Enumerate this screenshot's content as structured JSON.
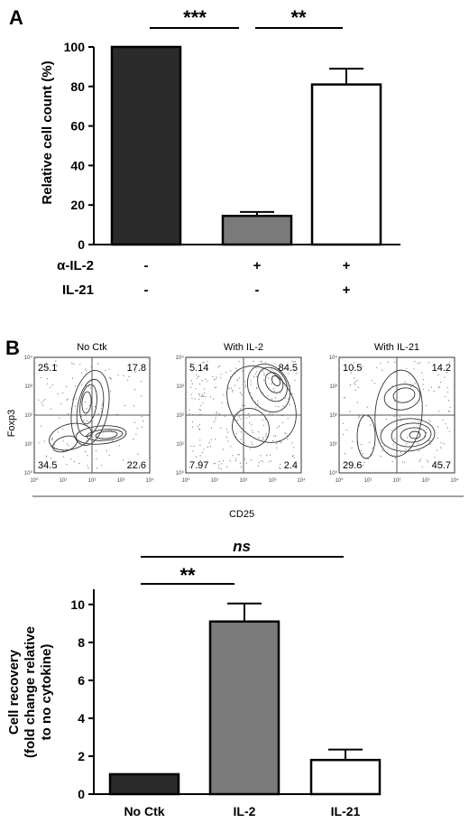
{
  "panel_a": {
    "label": "A",
    "treatment_rows": [
      {
        "name": "α-IL-2",
        "values": [
          "-",
          "+",
          "+"
        ]
      },
      {
        "name": "IL-21",
        "values": [
          "-",
          "-",
          "+"
        ]
      }
    ],
    "significance": [
      "***",
      "**"
    ]
  },
  "panel_b": {
    "label": "B",
    "flow": {
      "xlabel": "CD25",
      "ylabel": "Foxp3",
      "x_ticks": [
        "10⁰",
        "10¹",
        "10²",
        "10³",
        "10⁴"
      ],
      "y_ticks": [
        "10⁰",
        "10¹",
        "10²",
        "10³",
        "10⁴"
      ],
      "plots": [
        {
          "title": "No Ctk",
          "quadrants": {
            "ul": "25.1",
            "ur": "17.8",
            "ll": "34.5",
            "lr": "22.6"
          }
        },
        {
          "title": "With IL-2",
          "quadrants": {
            "ul": "5.14",
            "ur": "84.5",
            "ll": "7.97",
            "lr": "2.4"
          }
        },
        {
          "title": "With IL-21",
          "quadrants": {
            "ul": "10.5",
            "ur": "14.2",
            "ll": "29.6",
            "lr": "45.7"
          }
        }
      ]
    },
    "significance": [
      "ns",
      "**"
    ]
  },
  "colors": {
    "dark": "#2b2b2b",
    "gray": "#7a7a7a",
    "white": "#ffffff"
  },
  "chart_data": [
    {
      "type": "bar",
      "ylabel": "Relative cell count (%)",
      "ylim": [
        0,
        100
      ],
      "yticks": [
        0,
        20,
        40,
        60,
        80,
        100
      ],
      "categories": [
        "",
        "",
        ""
      ],
      "values": [
        100,
        14.5,
        81
      ],
      "errors": [
        0,
        2,
        8
      ],
      "bar_colors": [
        "#2b2b2b",
        "#7a7a7a",
        "#ffffff"
      ]
    },
    {
      "type": "bar",
      "ylabel": "Cell recovery (fold change relative to no cytokine)",
      "ylabel_lines": [
        "Cell recovery",
        "(fold change relative",
        "to no cytokine)"
      ],
      "ylim": [
        0,
        10.8
      ],
      "yticks": [
        0,
        2,
        4,
        6,
        8,
        10
      ],
      "categories": [
        "No Ctk",
        "IL-2",
        "IL-21"
      ],
      "values": [
        1.05,
        9.1,
        1.8
      ],
      "errors": [
        0,
        0.95,
        0.55
      ],
      "bar_colors": [
        "#2b2b2b",
        "#7a7a7a",
        "#ffffff"
      ]
    }
  ]
}
